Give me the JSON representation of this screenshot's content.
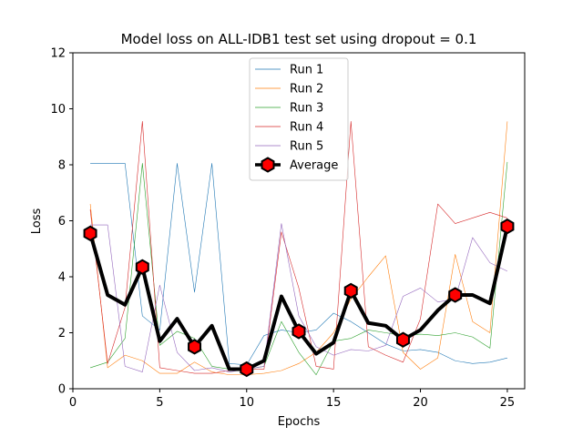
{
  "chart_data": {
    "type": "line",
    "title": "Model loss on ALL-IDB1 test set using dropout = 0.1",
    "xlabel": "Epochs",
    "ylabel": "Loss",
    "xlim": [
      0,
      26
    ],
    "ylim": [
      0,
      12
    ],
    "xticks": [
      0,
      5,
      10,
      15,
      20,
      25
    ],
    "yticks": [
      0,
      2,
      4,
      6,
      8,
      10,
      12
    ],
    "grid": false,
    "legend_position": "top-center",
    "x": [
      1,
      2,
      3,
      4,
      5,
      6,
      7,
      8,
      9,
      10,
      11,
      12,
      13,
      14,
      15,
      16,
      17,
      18,
      19,
      20,
      21,
      22,
      23,
      24,
      25
    ],
    "series": [
      {
        "name": "Run 1",
        "color": "#1f77b4",
        "linewidth": 0.6,
        "marker": "none",
        "values": [
          8.05,
          8.05,
          8.05,
          2.6,
          2.1,
          8.05,
          3.45,
          8.05,
          0.9,
          0.85,
          1.9,
          2.1,
          2.0,
          2.1,
          2.7,
          2.4,
          2.0,
          1.6,
          1.35,
          1.4,
          1.3,
          1.0,
          0.9,
          0.95,
          1.1
        ]
      },
      {
        "name": "Run 2",
        "color": "#ff7f0e",
        "linewidth": 0.6,
        "marker": "none",
        "values": [
          6.6,
          0.75,
          1.2,
          1.0,
          0.55,
          0.55,
          0.95,
          0.6,
          0.5,
          0.5,
          0.55,
          0.65,
          0.9,
          1.3,
          2.0,
          3.2,
          4.0,
          4.75,
          1.3,
          0.7,
          1.1,
          4.8,
          2.4,
          2.0,
          9.55
        ]
      },
      {
        "name": "Run 3",
        "color": "#2ca02c",
        "linewidth": 0.6,
        "marker": "none",
        "values": [
          0.75,
          0.95,
          1.8,
          8.05,
          1.55,
          2.05,
          1.8,
          0.8,
          0.7,
          0.7,
          0.8,
          2.4,
          1.3,
          0.5,
          1.7,
          1.8,
          2.1,
          2.0,
          1.9,
          1.95,
          1.9,
          2.0,
          1.85,
          1.45,
          8.1
        ]
      },
      {
        "name": "Run 4",
        "color": "#d62728",
        "linewidth": 0.6,
        "marker": "none",
        "values": [
          6.4,
          0.9,
          2.9,
          9.55,
          0.75,
          0.65,
          0.55,
          0.55,
          0.65,
          0.7,
          0.7,
          5.6,
          3.6,
          0.8,
          0.7,
          9.55,
          1.5,
          1.2,
          0.95,
          2.5,
          6.6,
          5.9,
          6.1,
          6.3,
          6.1
        ]
      },
      {
        "name": "Run 5",
        "color": "#9467bd",
        "linewidth": 0.6,
        "marker": "none",
        "values": [
          5.85,
          5.85,
          0.8,
          0.6,
          3.7,
          1.3,
          0.65,
          0.75,
          0.6,
          0.7,
          0.8,
          5.9,
          2.6,
          1.5,
          1.2,
          1.4,
          1.35,
          1.55,
          3.3,
          3.6,
          3.1,
          3.2,
          5.4,
          4.5,
          4.2
        ]
      },
      {
        "name": "Average",
        "color": "#000000",
        "linewidth": 4,
        "marker": "hexagon",
        "marker_fill": "#ff0000",
        "marker_every": 3,
        "values": [
          5.55,
          3.35,
          3.0,
          4.35,
          1.7,
          2.5,
          1.5,
          2.25,
          0.7,
          0.7,
          1.0,
          3.3,
          2.05,
          1.25,
          1.65,
          3.5,
          2.35,
          2.25,
          1.75,
          2.1,
          2.8,
          3.35,
          3.35,
          3.05,
          5.8
        ]
      }
    ]
  }
}
